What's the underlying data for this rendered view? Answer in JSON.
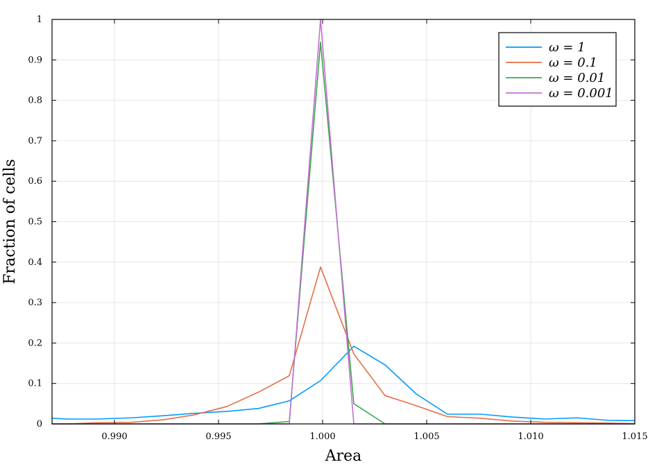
{
  "chart_data": {
    "type": "line",
    "xlabel": "Area",
    "ylabel": "Fraction of cells",
    "xlim": [
      0.987,
      1.015
    ],
    "ylim": [
      0,
      1
    ],
    "x_ticks": [
      0.99,
      0.995,
      1.0,
      1.005,
      1.01,
      1.015
    ],
    "x_tick_labels": [
      "0.990",
      "0.995",
      "1.000",
      "1.005",
      "1.010",
      "1.015"
    ],
    "y_ticks": [
      0,
      0.1,
      0.2,
      0.3,
      0.4,
      0.5,
      0.6,
      0.7,
      0.8,
      0.9,
      1
    ],
    "y_tick_labels": [
      "0",
      "0.1",
      "0.2",
      "0.3",
      "0.4",
      "0.5",
      "0.6",
      "0.7",
      "0.8",
      "0.9",
      "1"
    ],
    "grid": true,
    "legend_position": "top-right",
    "series": [
      {
        "name": "ω = 1",
        "color": "#009AFA",
        "x": [
          0.987,
          0.9877,
          0.9892,
          0.9908,
          0.9923,
          0.9938,
          0.9954,
          0.9969,
          0.9984,
          0.9999,
          1.0015,
          1.003,
          1.0045,
          1.006,
          1.0076,
          1.0091,
          1.0107,
          1.0122,
          1.0137,
          1.015
        ],
        "y": [
          0.014,
          0.012,
          0.012,
          0.015,
          0.02,
          0.026,
          0.031,
          0.038,
          0.057,
          0.107,
          0.192,
          0.146,
          0.074,
          0.024,
          0.024,
          0.017,
          0.012,
          0.015,
          0.009,
          0.008
        ]
      },
      {
        "name": "ω = 0.1",
        "color": "#E26F46",
        "x": [
          0.987,
          0.9877,
          0.9892,
          0.9908,
          0.9923,
          0.9938,
          0.9954,
          0.9969,
          0.9984,
          0.9999,
          1.0015,
          1.003,
          1.0045,
          1.006,
          1.0076,
          1.0091,
          1.0107,
          1.0122,
          1.0137,
          1.015
        ],
        "y": [
          0,
          0,
          0.003,
          0.004,
          0.01,
          0.022,
          0.043,
          0.078,
          0.119,
          0.388,
          0.173,
          0.07,
          0.045,
          0.018,
          0.014,
          0.007,
          0.004,
          0.003,
          0.002,
          0.001
        ]
      },
      {
        "name": "ω = 0.01",
        "color": "#3DA44D",
        "x": [
          0.987,
          0.9969,
          0.9984,
          0.9999,
          1.0015,
          1.003,
          1.015
        ],
        "y": [
          0,
          0,
          0.006,
          0.944,
          0.05,
          0,
          0
        ]
      },
      {
        "name": "ω = 0.001",
        "color": "#C271D2",
        "x": [
          0.987,
          0.9984,
          0.9999,
          1.0015,
          1.015
        ],
        "y": [
          0,
          0,
          1,
          0,
          0
        ]
      }
    ]
  }
}
